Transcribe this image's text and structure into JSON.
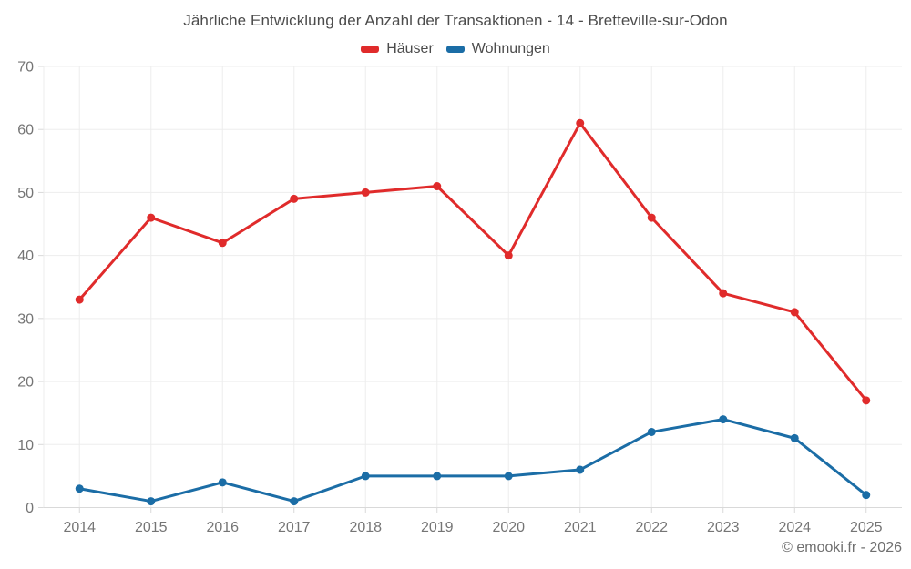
{
  "page": {
    "footer": "© emooki.fr - 2026"
  },
  "colors": {
    "grid": "#ededed",
    "axis": "#d9d9d9",
    "tick_label": "#757575",
    "title": "#4c4c4c",
    "footer": "#6f6f6f",
    "background": "#ffffff",
    "haeuser_red": "#e02b2b",
    "wohnungen_blue": "#1b6da6"
  },
  "chart_data": {
    "type": "line",
    "title": "Jährliche Entwicklung der Anzahl der Transaktionen - 14 - Bretteville-sur-Odon",
    "categories": [
      "2014",
      "2015",
      "2016",
      "2017",
      "2018",
      "2019",
      "2020",
      "2021",
      "2022",
      "2023",
      "2024",
      "2025"
    ],
    "series": [
      {
        "name": "Häuser",
        "color": "#e02b2b",
        "values": [
          33,
          46,
          42,
          49,
          50,
          51,
          40,
          61,
          46,
          34,
          31,
          17
        ]
      },
      {
        "name": "Wohnungen",
        "color": "#1b6da6",
        "values": [
          3,
          1,
          4,
          1,
          5,
          5,
          5,
          6,
          12,
          14,
          11,
          2
        ]
      }
    ],
    "xlabel": "",
    "ylabel": "",
    "ylim": [
      0,
      70
    ],
    "yticks": [
      0,
      10,
      20,
      30,
      40,
      50,
      60,
      70
    ],
    "grid": true,
    "legend_position": "top",
    "marker": "circle"
  }
}
